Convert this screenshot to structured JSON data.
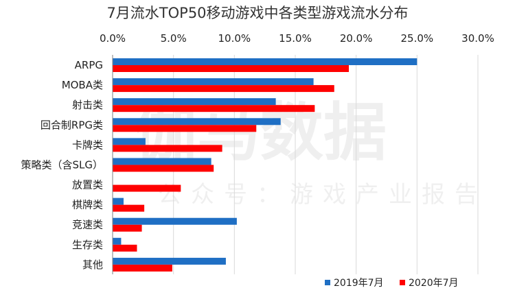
{
  "chart_data": {
    "type": "bar",
    "orientation": "horizontal",
    "title": "7月流水TOP50移动游戏中各类型游戏流水分布",
    "categories": [
      "ARPG",
      "MOBA类",
      "射击类",
      "回合制RPG类",
      "卡牌类",
      "策略类（含SLG）",
      "放置类",
      "棋牌类",
      "竞速类",
      "生存类",
      "其他"
    ],
    "series": [
      {
        "name": "2019年7月",
        "color": "#1f6fc4",
        "values": [
          25.0,
          16.5,
          13.4,
          13.8,
          2.7,
          8.1,
          0.0,
          0.9,
          10.2,
          0.7,
          9.3
        ]
      },
      {
        "name": "2020年7月",
        "color": "#ff0000",
        "values": [
          19.4,
          18.2,
          16.6,
          11.8,
          9.0,
          8.3,
          5.6,
          2.6,
          2.4,
          2.0,
          4.9
        ]
      }
    ],
    "x_ticks": [
      "0.0%",
      "5.0%",
      "10.0%",
      "15.0%",
      "20.0%",
      "25.0%",
      "30.0%"
    ],
    "xlim": [
      0,
      30
    ],
    "xaxis_position": "top",
    "grid": true,
    "legend_position": "bottom-right"
  },
  "watermark": {
    "main": "伽马数据",
    "sub": "公众号：游戏产业报告"
  }
}
